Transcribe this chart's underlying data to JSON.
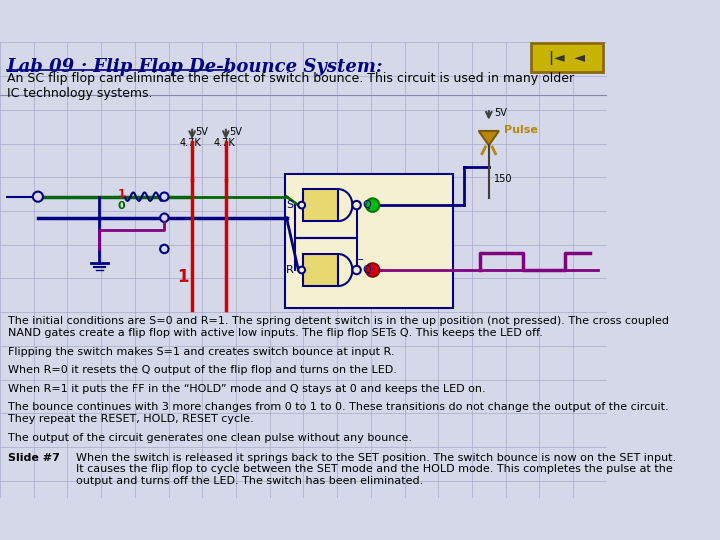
{
  "bg_color": "#d4d8e8",
  "title": "Lab 09 : Flip Flop De-bounce System:",
  "title_color": "#000080",
  "title_fontsize": 13,
  "subtitle": "An SC flip flop can eliminate the effect of switch bounce. This circuit is used in many older\nIC technology systems.",
  "subtitle_fontsize": 9,
  "nav_box_color": "#c8b400",
  "nav_box_edge": "#8B6914",
  "paragraph1": "The initial conditions are S=0 and R=1. The spring detent switch is in the up position (not pressed). The cross coupled\nNAND gates create a flip flop with active low inputs. The flip flop SETs Q. This keeps the LED off.",
  "paragraph2": "Flipping the switch makes S=1 and creates switch bounce at input R.",
  "paragraph3": "When R=0 it resets the Q output of the flip flop and turns on the LED.",
  "paragraph4": "When R=1 it puts the FF in the “HOLD” mode and Q stays at 0 and keeps the LED on.",
  "paragraph5": "The bounce continues with 3 more changes from 0 to 1 to 0. These transitions do not change the output of the circuit.\nThey repeat the RESET, HOLD, RESET cycle.",
  "paragraph6": "The output of the circuit generates one clean pulse without any bounce.",
  "slide_label": "Slide #7",
  "slide_text": "When the switch is released it springs back to the SET position. The switch bounce is now on the SET input.\nIt causes the flip flop to cycle between the SET mode and the HOLD mode. This completes the pulse at the\noutput and turns off the LED. The switch has been eliminated.",
  "text_color": "#000000",
  "text_fontsize": 8,
  "grid_color": "#aaaacc",
  "dark_navy": "#000080",
  "red": "#cc0000",
  "green_wire": "#006600",
  "purple": "#800080",
  "gold": "#b8860b"
}
